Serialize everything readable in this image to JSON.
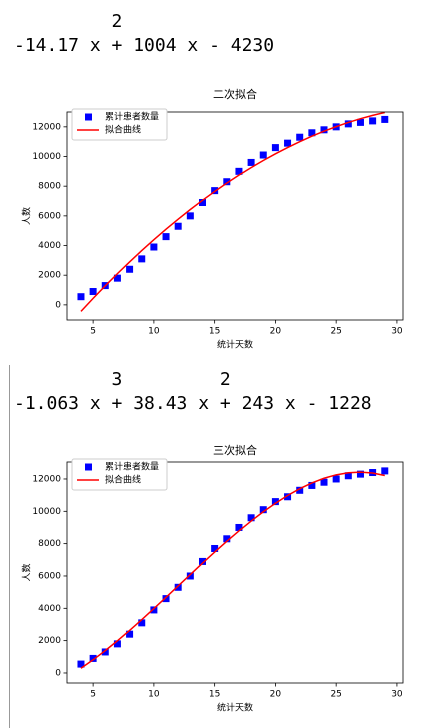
{
  "outputs": [
    {
      "exponents": "         2",
      "polynomial": "-14.17 x + 1004 x - 4230"
    },
    {
      "exponents": "         3         2",
      "polynomial": "-1.063 x + 38.43 x + 243 x - 1228"
    }
  ],
  "chart_data": [
    {
      "type": "scatter",
      "title": "二次拟合",
      "x_label": "统计天数",
      "y_label": "人数",
      "x": [
        4,
        5,
        6,
        7,
        8,
        9,
        10,
        11,
        12,
        13,
        14,
        15,
        16,
        17,
        18,
        19,
        20,
        21,
        22,
        23,
        24,
        25,
        26,
        27,
        28,
        29
      ],
      "series": [
        {
          "name": "累计患者数量",
          "color": "#0000ff",
          "marker": "square",
          "values": [
            550,
            900,
            1300,
            1800,
            2400,
            3100,
            3900,
            4600,
            5300,
            6000,
            6900,
            7700,
            8300,
            9000,
            9600,
            10100,
            10600,
            10900,
            11300,
            11600,
            11800,
            12000,
            12200,
            12300,
            12400,
            12500
          ]
        },
        {
          "name": "拟合曲线",
          "color": "#ff0000",
          "linestyle": "solid",
          "values": [
            -441,
            436,
            1284,
            2104,
            2895,
            3658,
            4393,
            5099,
            5778,
            6427,
            7049,
            7642,
            8207,
            8743,
            9251,
            9731,
            10182,
            10605,
            11000,
            11366,
            11704,
            12014,
            12295,
            12548,
            12773,
            12969
          ]
        }
      ],
      "xlim": [
        2.85,
        30.5
      ],
      "xticks": [
        5,
        10,
        15,
        20,
        25,
        30
      ],
      "ylim": [
        -1020,
        13000
      ],
      "yticks": [
        0,
        2000,
        4000,
        6000,
        8000,
        10000,
        12000
      ],
      "grid": false,
      "legend": "upper left"
    },
    {
      "type": "scatter",
      "title": "三次拟合",
      "x_label": "统计天数",
      "y_label": "人数",
      "x": [
        4,
        5,
        6,
        7,
        8,
        9,
        10,
        11,
        12,
        13,
        14,
        15,
        16,
        17,
        18,
        19,
        20,
        21,
        22,
        23,
        24,
        25,
        26,
        27,
        28,
        29
      ],
      "series": [
        {
          "name": "累计患者数量",
          "color": "#0000ff",
          "marker": "square",
          "values": [
            550,
            900,
            1300,
            1800,
            2400,
            3100,
            3900,
            4600,
            5300,
            6000,
            6900,
            7700,
            8300,
            9000,
            9600,
            10100,
            10600,
            10900,
            11300,
            11600,
            11800,
            12000,
            12200,
            12300,
            12400,
            12500
          ]
        },
        {
          "name": "拟合曲线",
          "color": "#ff0000",
          "linestyle": "solid",
          "values": [
            291,
            815,
            1384,
            1992,
            2631,
            3297,
            3982,
            4680,
            5385,
            6090,
            6789,
            7476,
            8144,
            8787,
            9398,
            9971,
            10500,
            10978,
            11399,
            11757,
            12045,
            12256,
            12385,
            12425,
            12370,
            12213
          ]
        }
      ],
      "xlim": [
        2.85,
        30.5
      ],
      "xticks": [
        5,
        10,
        15,
        20,
        25,
        30
      ],
      "ylim": [
        -620,
        13050
      ],
      "yticks": [
        0,
        2000,
        4000,
        6000,
        8000,
        10000,
        12000
      ],
      "grid": false,
      "legend": "upper left"
    }
  ]
}
